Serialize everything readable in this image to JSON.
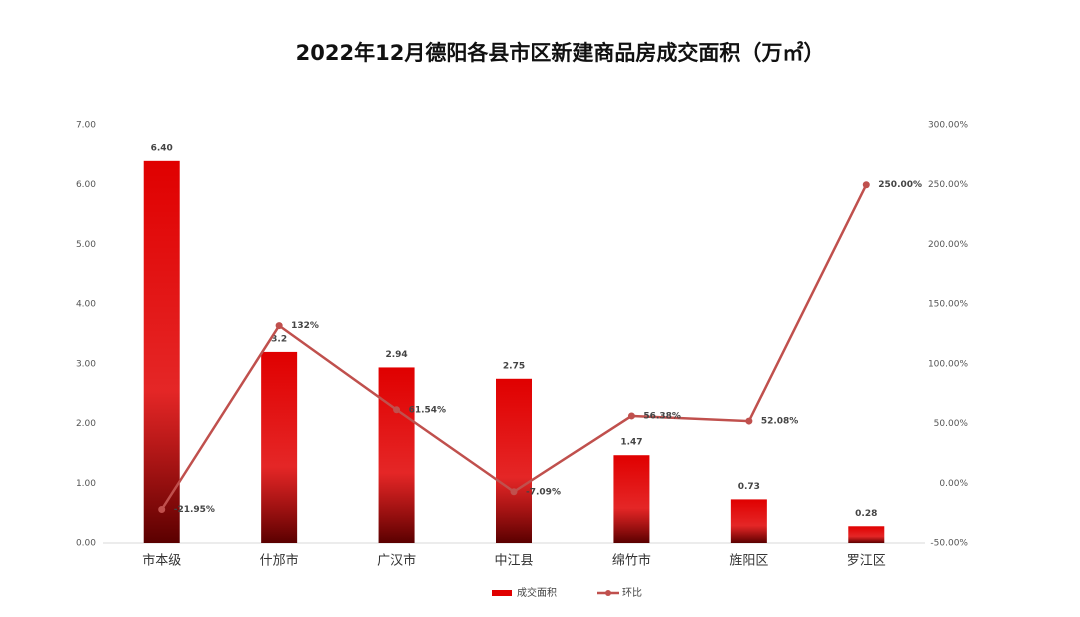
{
  "chart_data": {
    "type": "bar-line",
    "title": "2022年12月德阳各县市区新建商品房成交面积（万㎡）",
    "categories": [
      "市本级",
      "什邡市",
      "广汉市",
      "中江县",
      "绵竹市",
      "旌阳区",
      "罗江区"
    ],
    "series": [
      {
        "name": "成交面积",
        "type": "bar",
        "color": "#e00000",
        "values": [
          6.4,
          3.2,
          2.94,
          2.75,
          1.47,
          0.73,
          0.28
        ],
        "value_labels": [
          "6.40",
          "3.2",
          "2.94",
          "2.75",
          "1.47",
          "0.73",
          "0.28"
        ]
      },
      {
        "name": "环比",
        "type": "line",
        "axis": "y2",
        "color": "#c0504d",
        "values": [
          -21.95,
          132,
          61.54,
          -7.09,
          56.38,
          52.08,
          250
        ],
        "value_labels": [
          "-21.95%",
          "132%",
          "61.54%",
          "-7.09%",
          "56.38%",
          "52.08%",
          "250.00%"
        ]
      }
    ],
    "ylim": [
      0,
      7
    ],
    "yticks": [
      {
        "value": 0,
        "label": "0.00"
      },
      {
        "value": 1,
        "label": "1.00"
      },
      {
        "value": 2,
        "label": "2.00"
      },
      {
        "value": 3,
        "label": "3.00"
      },
      {
        "value": 4,
        "label": "4.00"
      },
      {
        "value": 5,
        "label": "5.00"
      },
      {
        "value": 6,
        "label": "6.00"
      },
      {
        "value": 7,
        "label": "7.00"
      }
    ],
    "y2lim": [
      -50,
      300
    ],
    "y2ticks": [
      {
        "value": -50,
        "label": "-50.00%"
      },
      {
        "value": 0,
        "label": "0.00%"
      },
      {
        "value": 50,
        "label": "50.00%"
      },
      {
        "value": 100,
        "label": "100.00%"
      },
      {
        "value": 150,
        "label": "150.00%"
      },
      {
        "value": 200,
        "label": "200.00%"
      },
      {
        "value": 250,
        "label": "250.00%"
      },
      {
        "value": 300,
        "label": "300.00%"
      }
    ],
    "grid": false,
    "legend": "bottom"
  }
}
